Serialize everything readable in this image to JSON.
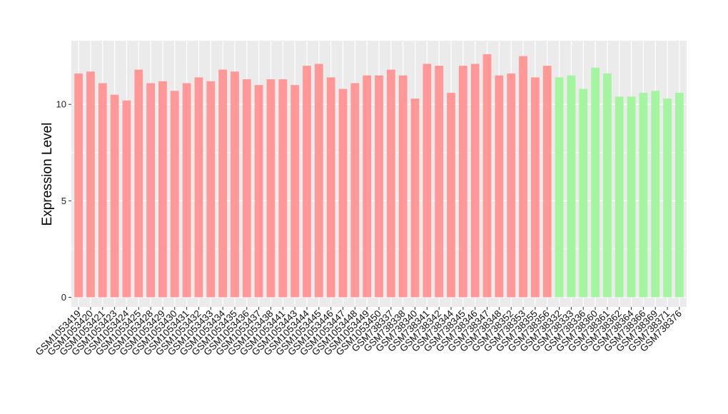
{
  "chart_data": {
    "type": "bar",
    "y_label": "Expression Level",
    "categories": [
      "GSM1053419",
      "GSM1053420",
      "GSM1053421",
      "GSM1053423",
      "GSM1053424",
      "GSM1053425",
      "GSM1053428",
      "GSM1053429",
      "GSM1053430",
      "GSM1053431",
      "GSM1053432",
      "GSM1053433",
      "GSM1053434",
      "GSM1053435",
      "GSM1053436",
      "GSM1053437",
      "GSM1053438",
      "GSM1053441",
      "GSM1053443",
      "GSM1053444",
      "GSM1053445",
      "GSM1053446",
      "GSM1053447",
      "GSM1053448",
      "GSM1053449",
      "GSM1053450",
      "GSM738337",
      "GSM738338",
      "GSM738340",
      "GSM738341",
      "GSM738342",
      "GSM738344",
      "GSM738345",
      "GSM738346",
      "GSM738347",
      "GSM738348",
      "GSM738352",
      "GSM738353",
      "GSM738355",
      "GSM738356",
      "GSM738332",
      "GSM738333",
      "GSM738336",
      "GSM738360",
      "GSM738361",
      "GSM738362",
      "GSM738364",
      "GSM738366",
      "GSM738369",
      "GSM738371",
      "GSM738376"
    ],
    "values": [
      11.6,
      11.7,
      11.1,
      10.5,
      10.2,
      11.8,
      11.1,
      11.2,
      10.7,
      11.1,
      11.4,
      11.2,
      11.8,
      11.7,
      11.3,
      11.0,
      11.3,
      11.3,
      11.0,
      12.0,
      12.1,
      11.4,
      10.8,
      11.1,
      11.5,
      11.5,
      11.8,
      11.5,
      10.3,
      12.1,
      12.0,
      10.6,
      12.0,
      12.1,
      12.6,
      11.5,
      11.6,
      12.5,
      11.4,
      12.0,
      11.4,
      11.5,
      10.8,
      11.9,
      11.6,
      10.4,
      10.4,
      10.6,
      10.7,
      10.3,
      10.6
    ],
    "colors": [
      "#ff9896",
      "#ff9896",
      "#ff9896",
      "#ff9896",
      "#ff9896",
      "#ff9896",
      "#ff9896",
      "#ff9896",
      "#ff9896",
      "#ff9896",
      "#ff9896",
      "#ff9896",
      "#ff9896",
      "#ff9896",
      "#ff9896",
      "#ff9896",
      "#ff9896",
      "#ff9896",
      "#ff9896",
      "#ff9896",
      "#ff9896",
      "#ff9896",
      "#ff9896",
      "#ff9896",
      "#ff9896",
      "#ff9896",
      "#ff9896",
      "#ff9896",
      "#ff9896",
      "#ff9896",
      "#ff9896",
      "#ff9896",
      "#ff9896",
      "#ff9896",
      "#ff9896",
      "#ff9896",
      "#ff9896",
      "#ff9896",
      "#ff9896",
      "#ff9896",
      "#a3f5a0",
      "#a3f5a0",
      "#a3f5a0",
      "#a3f5a0",
      "#a3f5a0",
      "#a3f5a0",
      "#a3f5a0",
      "#a3f5a0",
      "#a3f5a0",
      "#a3f5a0",
      "#a3f5a0"
    ],
    "ylim": [
      -0.5,
      13.3
    ],
    "yticks": [
      0,
      5,
      10
    ],
    "grid": true
  }
}
